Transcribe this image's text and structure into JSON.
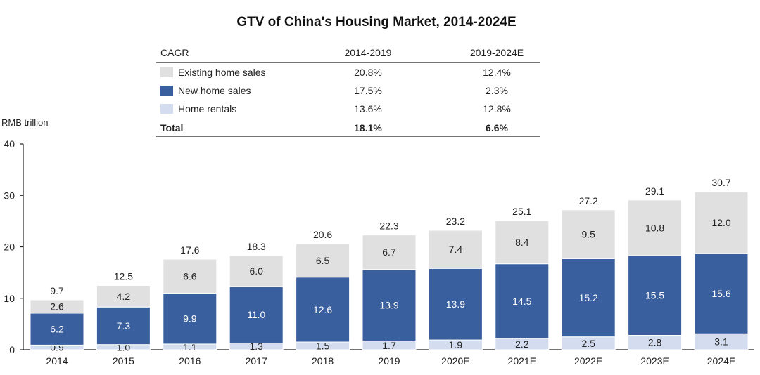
{
  "chart_data": {
    "type": "bar",
    "stacked": true,
    "title": "GTV of China's Housing Market, 2014-2024E",
    "ylabel": "RMB trillion",
    "ylim": [
      0,
      40
    ],
    "yticks": [
      "0",
      "10",
      "20",
      "30",
      "40"
    ],
    "categories": [
      "2014",
      "2015",
      "2016",
      "2017",
      "2018",
      "2019",
      "2020E",
      "2021E",
      "2022E",
      "2023E",
      "2024E"
    ],
    "series": [
      {
        "name": "Home rentals",
        "color": "#d4ddf0",
        "label_color": "#222222",
        "values": [
          0.9,
          1.0,
          1.1,
          1.3,
          1.5,
          1.7,
          1.9,
          2.2,
          2.5,
          2.8,
          3.1
        ]
      },
      {
        "name": "New home sales",
        "color": "#3a5f9e",
        "label_color": "#ffffff",
        "values": [
          6.2,
          7.3,
          9.9,
          11.0,
          12.6,
          13.9,
          13.9,
          14.5,
          15.2,
          15.5,
          15.6
        ]
      },
      {
        "name": "Existing home sales",
        "color": "#e0e0e0",
        "label_color": "#222222",
        "values": [
          2.6,
          4.2,
          6.6,
          6.0,
          6.5,
          6.7,
          7.4,
          8.4,
          9.5,
          10.8,
          12.0
        ]
      }
    ],
    "totals": [
      9.7,
      12.5,
      17.6,
      18.3,
      20.6,
      22.3,
      23.2,
      25.1,
      27.2,
      29.1,
      30.7
    ],
    "cagr_table": {
      "header": [
        "CAGR",
        "2014-2019",
        "2019-2024E"
      ],
      "rows": [
        {
          "label": "Existing home sales",
          "swatch": "#e0e0e0",
          "v1": "20.8%",
          "v2": "12.4%"
        },
        {
          "label": "New home sales",
          "swatch": "#3a5f9e",
          "v1": "17.5%",
          "v2": "2.3%"
        },
        {
          "label": "Home rentals",
          "swatch": "#d4ddf0",
          "v1": "13.6%",
          "v2": "12.8%"
        }
      ],
      "total": {
        "label": "Total",
        "v1": "18.1%",
        "v2": "6.6%"
      }
    }
  }
}
